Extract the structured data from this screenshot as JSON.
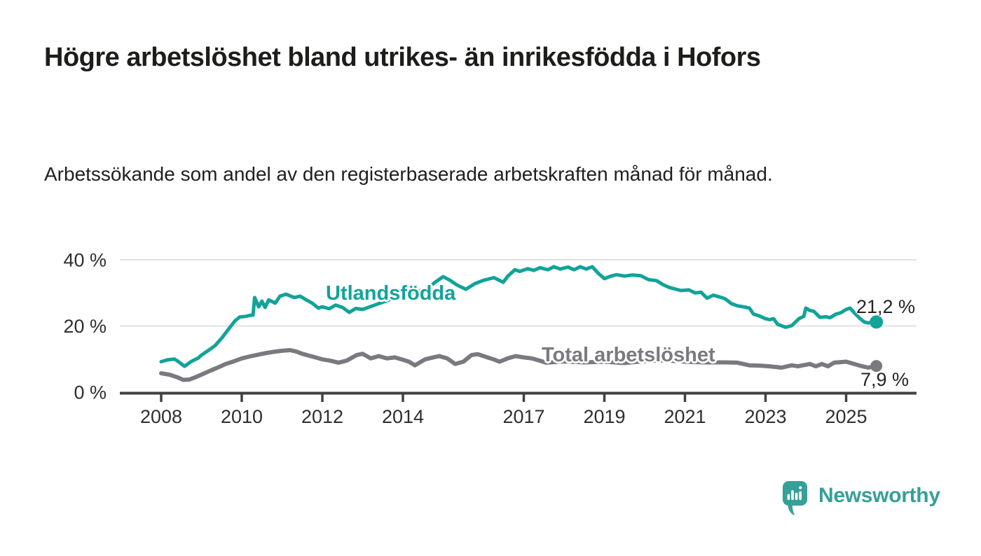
{
  "header": {
    "title": "Högre arbetslöshet bland utrikes- än inrikesfödda i Hofors",
    "subtitle": "Arbetssökande som andel av den registerbaserade arbetskraften månad för månad."
  },
  "chart_data": {
    "type": "line",
    "title": "Högre arbetslöshet bland utrikes- än inrikesfödda i Hofors",
    "xlabel": "",
    "ylabel": "Arbetssökande som andel av den registerbaserade arbetskraften",
    "x_axis": {
      "ticks": [
        2008,
        2010,
        2012,
        2014,
        2017,
        2019,
        2021,
        2023,
        2025
      ],
      "range": [
        2008,
        2025.75
      ]
    },
    "y_axis": {
      "ticks": [
        0,
        20,
        40
      ],
      "grid_ticks": [
        20,
        40
      ],
      "tick_suffix": " %",
      "range": [
        0,
        42
      ],
      "grid": true
    },
    "legend_position": "inline-labels",
    "series": [
      {
        "id": "utlandsfodda",
        "name": "Utlandsfödda",
        "color": "#12a39a",
        "end_label": "21,2 %",
        "end_value": 21.2,
        "points": [
          [
            2008.0,
            9.2
          ],
          [
            2008.17,
            9.8
          ],
          [
            2008.33,
            10.0
          ],
          [
            2008.42,
            9.3
          ],
          [
            2008.58,
            7.8
          ],
          [
            2008.75,
            9.3
          ],
          [
            2008.92,
            10.3
          ],
          [
            2009.0,
            11.2
          ],
          [
            2009.17,
            12.6
          ],
          [
            2009.33,
            14.0
          ],
          [
            2009.5,
            16.3
          ],
          [
            2009.67,
            19.0
          ],
          [
            2009.83,
            21.5
          ],
          [
            2009.95,
            22.7
          ],
          [
            2010.1,
            22.9
          ],
          [
            2010.2,
            23.2
          ],
          [
            2010.28,
            23.3
          ],
          [
            2010.32,
            28.6
          ],
          [
            2010.42,
            25.8
          ],
          [
            2010.5,
            27.5
          ],
          [
            2010.58,
            25.6
          ],
          [
            2010.67,
            27.9
          ],
          [
            2010.83,
            26.9
          ],
          [
            2010.95,
            29.0
          ],
          [
            2011.1,
            29.6
          ],
          [
            2011.3,
            28.6
          ],
          [
            2011.45,
            29.0
          ],
          [
            2011.6,
            27.9
          ],
          [
            2011.75,
            26.9
          ],
          [
            2011.9,
            25.4
          ],
          [
            2012.0,
            25.8
          ],
          [
            2012.17,
            25.2
          ],
          [
            2012.33,
            26.3
          ],
          [
            2012.5,
            25.6
          ],
          [
            2012.67,
            24.1
          ],
          [
            2012.83,
            25.3
          ],
          [
            2013.0,
            25.0
          ],
          [
            2013.25,
            26.1
          ],
          [
            2013.5,
            27.2
          ],
          [
            2013.75,
            28.3
          ],
          [
            2014.0,
            29.2
          ],
          [
            2014.25,
            30.1
          ],
          [
            2014.5,
            31.0
          ],
          [
            2014.64,
            31.7
          ],
          [
            2014.8,
            33.2
          ],
          [
            2015.0,
            34.9
          ],
          [
            2015.17,
            33.8
          ],
          [
            2015.34,
            32.4
          ],
          [
            2015.56,
            31.1
          ],
          [
            2015.79,
            32.8
          ],
          [
            2016.0,
            33.8
          ],
          [
            2016.26,
            34.6
          ],
          [
            2016.49,
            33.2
          ],
          [
            2016.6,
            35.0
          ],
          [
            2016.78,
            37.0
          ],
          [
            2016.9,
            36.5
          ],
          [
            2017.1,
            37.3
          ],
          [
            2017.25,
            36.8
          ],
          [
            2017.4,
            37.6
          ],
          [
            2017.6,
            37.0
          ],
          [
            2017.75,
            37.9
          ],
          [
            2017.9,
            37.2
          ],
          [
            2018.1,
            37.8
          ],
          [
            2018.25,
            37.0
          ],
          [
            2018.4,
            37.9
          ],
          [
            2018.55,
            37.2
          ],
          [
            2018.7,
            37.9
          ],
          [
            2018.85,
            35.9
          ],
          [
            2019.0,
            34.3
          ],
          [
            2019.15,
            35.0
          ],
          [
            2019.3,
            35.5
          ],
          [
            2019.5,
            35.1
          ],
          [
            2019.7,
            35.4
          ],
          [
            2019.9,
            35.2
          ],
          [
            2020.1,
            34.0
          ],
          [
            2020.3,
            33.7
          ],
          [
            2020.45,
            32.5
          ],
          [
            2020.6,
            31.7
          ],
          [
            2020.75,
            31.2
          ],
          [
            2020.9,
            30.7
          ],
          [
            2021.1,
            30.9
          ],
          [
            2021.25,
            30.0
          ],
          [
            2021.4,
            30.2
          ],
          [
            2021.55,
            28.4
          ],
          [
            2021.7,
            29.3
          ],
          [
            2021.85,
            28.8
          ],
          [
            2022.0,
            28.2
          ],
          [
            2022.15,
            26.8
          ],
          [
            2022.3,
            26.1
          ],
          [
            2022.45,
            25.8
          ],
          [
            2022.6,
            25.4
          ],
          [
            2022.7,
            23.6
          ],
          [
            2022.85,
            23.0
          ],
          [
            2023.0,
            22.2
          ],
          [
            2023.1,
            21.9
          ],
          [
            2023.2,
            22.2
          ],
          [
            2023.3,
            20.5
          ],
          [
            2023.5,
            19.6
          ],
          [
            2023.65,
            20.1
          ],
          [
            2023.83,
            22.2
          ],
          [
            2023.95,
            22.9
          ],
          [
            2024.0,
            25.4
          ],
          [
            2024.1,
            24.7
          ],
          [
            2024.2,
            24.4
          ],
          [
            2024.35,
            22.6
          ],
          [
            2024.5,
            22.8
          ],
          [
            2024.6,
            22.5
          ],
          [
            2024.75,
            23.6
          ],
          [
            2024.87,
            24.0
          ],
          [
            2025.0,
            25.0
          ],
          [
            2025.1,
            25.4
          ],
          [
            2025.2,
            24.0
          ],
          [
            2025.35,
            22.2
          ],
          [
            2025.45,
            21.2
          ],
          [
            2025.55,
            20.9
          ],
          [
            2025.65,
            21.2
          ],
          [
            2025.75,
            21.2
          ]
        ]
      },
      {
        "id": "total-arbetsloshet",
        "name": "Total arbetslöshet",
        "color": "#7b7980",
        "end_label": "7,9 %",
        "end_value": 7.9,
        "points": [
          [
            2008.0,
            5.7
          ],
          [
            2008.2,
            5.3
          ],
          [
            2008.4,
            4.5
          ],
          [
            2008.55,
            3.7
          ],
          [
            2008.7,
            3.8
          ],
          [
            2008.85,
            4.5
          ],
          [
            2009.0,
            5.3
          ],
          [
            2009.2,
            6.4
          ],
          [
            2009.4,
            7.4
          ],
          [
            2009.6,
            8.5
          ],
          [
            2009.8,
            9.3
          ],
          [
            2010.0,
            10.2
          ],
          [
            2010.2,
            10.8
          ],
          [
            2010.4,
            11.3
          ],
          [
            2010.6,
            11.8
          ],
          [
            2010.8,
            12.2
          ],
          [
            2011.0,
            12.5
          ],
          [
            2011.2,
            12.7
          ],
          [
            2011.35,
            12.3
          ],
          [
            2011.5,
            11.6
          ],
          [
            2011.65,
            11.1
          ],
          [
            2011.8,
            10.6
          ],
          [
            2012.0,
            9.9
          ],
          [
            2012.2,
            9.5
          ],
          [
            2012.4,
            8.9
          ],
          [
            2012.6,
            9.5
          ],
          [
            2012.85,
            11.2
          ],
          [
            2013.0,
            11.6
          ],
          [
            2013.2,
            10.2
          ],
          [
            2013.4,
            10.9
          ],
          [
            2013.6,
            10.2
          ],
          [
            2013.8,
            10.5
          ],
          [
            2014.0,
            9.8
          ],
          [
            2014.15,
            9.2
          ],
          [
            2014.3,
            8.1
          ],
          [
            2014.55,
            9.9
          ],
          [
            2014.75,
            10.5
          ],
          [
            2014.9,
            10.9
          ],
          [
            2015.1,
            10.2
          ],
          [
            2015.3,
            8.5
          ],
          [
            2015.5,
            9.2
          ],
          [
            2015.7,
            11.2
          ],
          [
            2015.85,
            11.5
          ],
          [
            2016.1,
            10.5
          ],
          [
            2016.25,
            9.9
          ],
          [
            2016.4,
            9.2
          ],
          [
            2016.6,
            10.2
          ],
          [
            2016.8,
            10.9
          ],
          [
            2017.0,
            10.5
          ],
          [
            2017.2,
            10.2
          ],
          [
            2017.4,
            9.5
          ],
          [
            2017.55,
            8.9
          ],
          [
            2018.0,
            9.3
          ],
          [
            2018.5,
            9.0
          ],
          [
            2019.0,
            9.2
          ],
          [
            2019.5,
            8.8
          ],
          [
            2020.0,
            9.4
          ],
          [
            2020.5,
            9.6
          ],
          [
            2021.0,
            9.2
          ],
          [
            2021.5,
            9.0
          ],
          [
            2022.0,
            9.0
          ],
          [
            2022.3,
            8.9
          ],
          [
            2022.6,
            8.1
          ],
          [
            2022.9,
            8.0
          ],
          [
            2023.1,
            7.8
          ],
          [
            2023.4,
            7.4
          ],
          [
            2023.65,
            8.1
          ],
          [
            2023.8,
            7.8
          ],
          [
            2024.1,
            8.5
          ],
          [
            2024.25,
            7.8
          ],
          [
            2024.4,
            8.5
          ],
          [
            2024.55,
            7.8
          ],
          [
            2024.7,
            8.9
          ],
          [
            2025.0,
            9.2
          ],
          [
            2025.2,
            8.5
          ],
          [
            2025.4,
            7.8
          ],
          [
            2025.55,
            7.4
          ],
          [
            2025.75,
            7.9
          ]
        ]
      }
    ]
  },
  "colors": {
    "accent_teal": "#12a39a",
    "series_gray": "#7b7980",
    "axis": "#414042",
    "gridline": "#e2e2e2",
    "text_dark": "#1d1d1b",
    "logo_teal": "#35a098"
  },
  "footer": {
    "brand": "Newsworthy",
    "logo_icon": "speech-bubble-bar-chart-icon"
  }
}
